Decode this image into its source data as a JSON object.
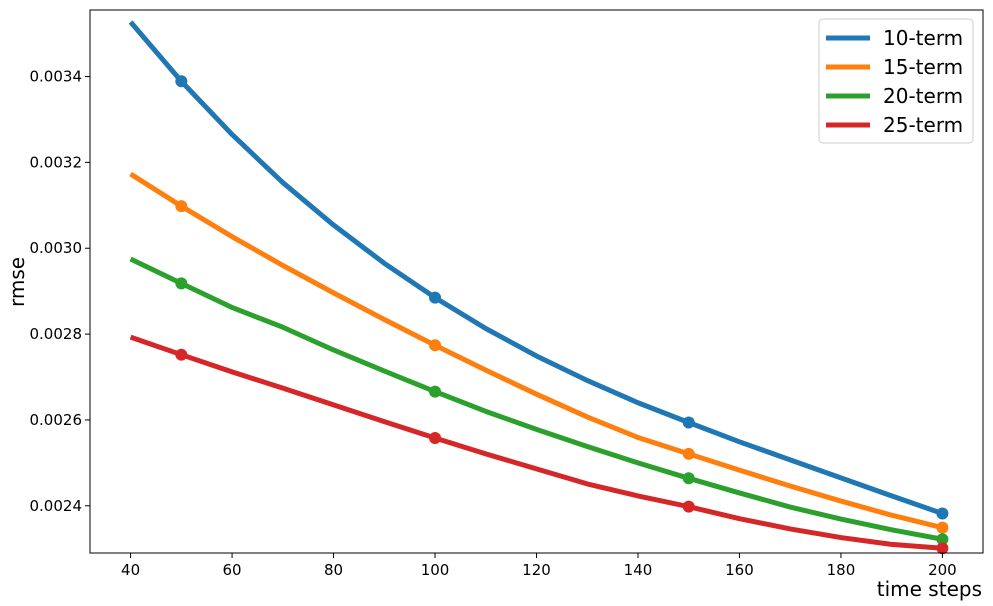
{
  "chart_data": {
    "type": "line",
    "title": "",
    "xlabel": "time steps",
    "ylabel": "rmse",
    "xlim": [
      32,
      208
    ],
    "ylim": [
      0.00229,
      0.003555
    ],
    "x_ticks": [
      40,
      60,
      80,
      100,
      120,
      140,
      160,
      180,
      200
    ],
    "y_ticks": [
      0.0024,
      0.0026,
      0.0028,
      0.003,
      0.0032,
      0.0034
    ],
    "x_tick_labels": [
      "40",
      "60",
      "80",
      "100",
      "120",
      "140",
      "160",
      "180",
      "200"
    ],
    "y_tick_labels": [
      "0.0024",
      "0.0026",
      "0.0028",
      "0.0030",
      "0.0032",
      "0.0034"
    ],
    "grid": false,
    "legend_position": "top-right",
    "x": [
      40,
      50,
      60,
      70,
      80,
      90,
      100,
      110,
      120,
      130,
      140,
      150,
      160,
      170,
      180,
      190,
      200
    ],
    "marker_x": [
      50,
      100,
      150,
      200
    ],
    "series": [
      {
        "name": "10-term",
        "color": "#1f77b4",
        "values": [
          0.003527,
          0.003389,
          0.003265,
          0.003153,
          0.003054,
          0.002965,
          0.002885,
          0.002813,
          0.002749,
          0.002692,
          0.00264,
          0.002594,
          0.002549,
          0.002507,
          0.002465,
          0.002423,
          0.002382
        ]
      },
      {
        "name": "15-term",
        "color": "#ff7f0e",
        "values": [
          0.003173,
          0.003098,
          0.003027,
          0.00296,
          0.002896,
          0.002834,
          0.002774,
          0.002716,
          0.00266,
          0.002607,
          0.002559,
          0.002521,
          0.002483,
          0.002446,
          0.002411,
          0.002378,
          0.002349
        ]
      },
      {
        "name": "20-term",
        "color": "#2ca02c",
        "values": [
          0.002975,
          0.002918,
          0.002862,
          0.002816,
          0.002763,
          0.002714,
          0.002666,
          0.00262,
          0.002578,
          0.002538,
          0.0025,
          0.002464,
          0.00243,
          0.002397,
          0.002369,
          0.002344,
          0.002322
        ]
      },
      {
        "name": "25-term",
        "color": "#d62728",
        "values": [
          0.002793,
          0.002752,
          0.002712,
          0.002674,
          0.002635,
          0.002596,
          0.002558,
          0.002521,
          0.002486,
          0.002451,
          0.002423,
          0.002398,
          0.00237,
          0.002346,
          0.002326,
          0.00231,
          0.002301
        ]
      }
    ]
  }
}
